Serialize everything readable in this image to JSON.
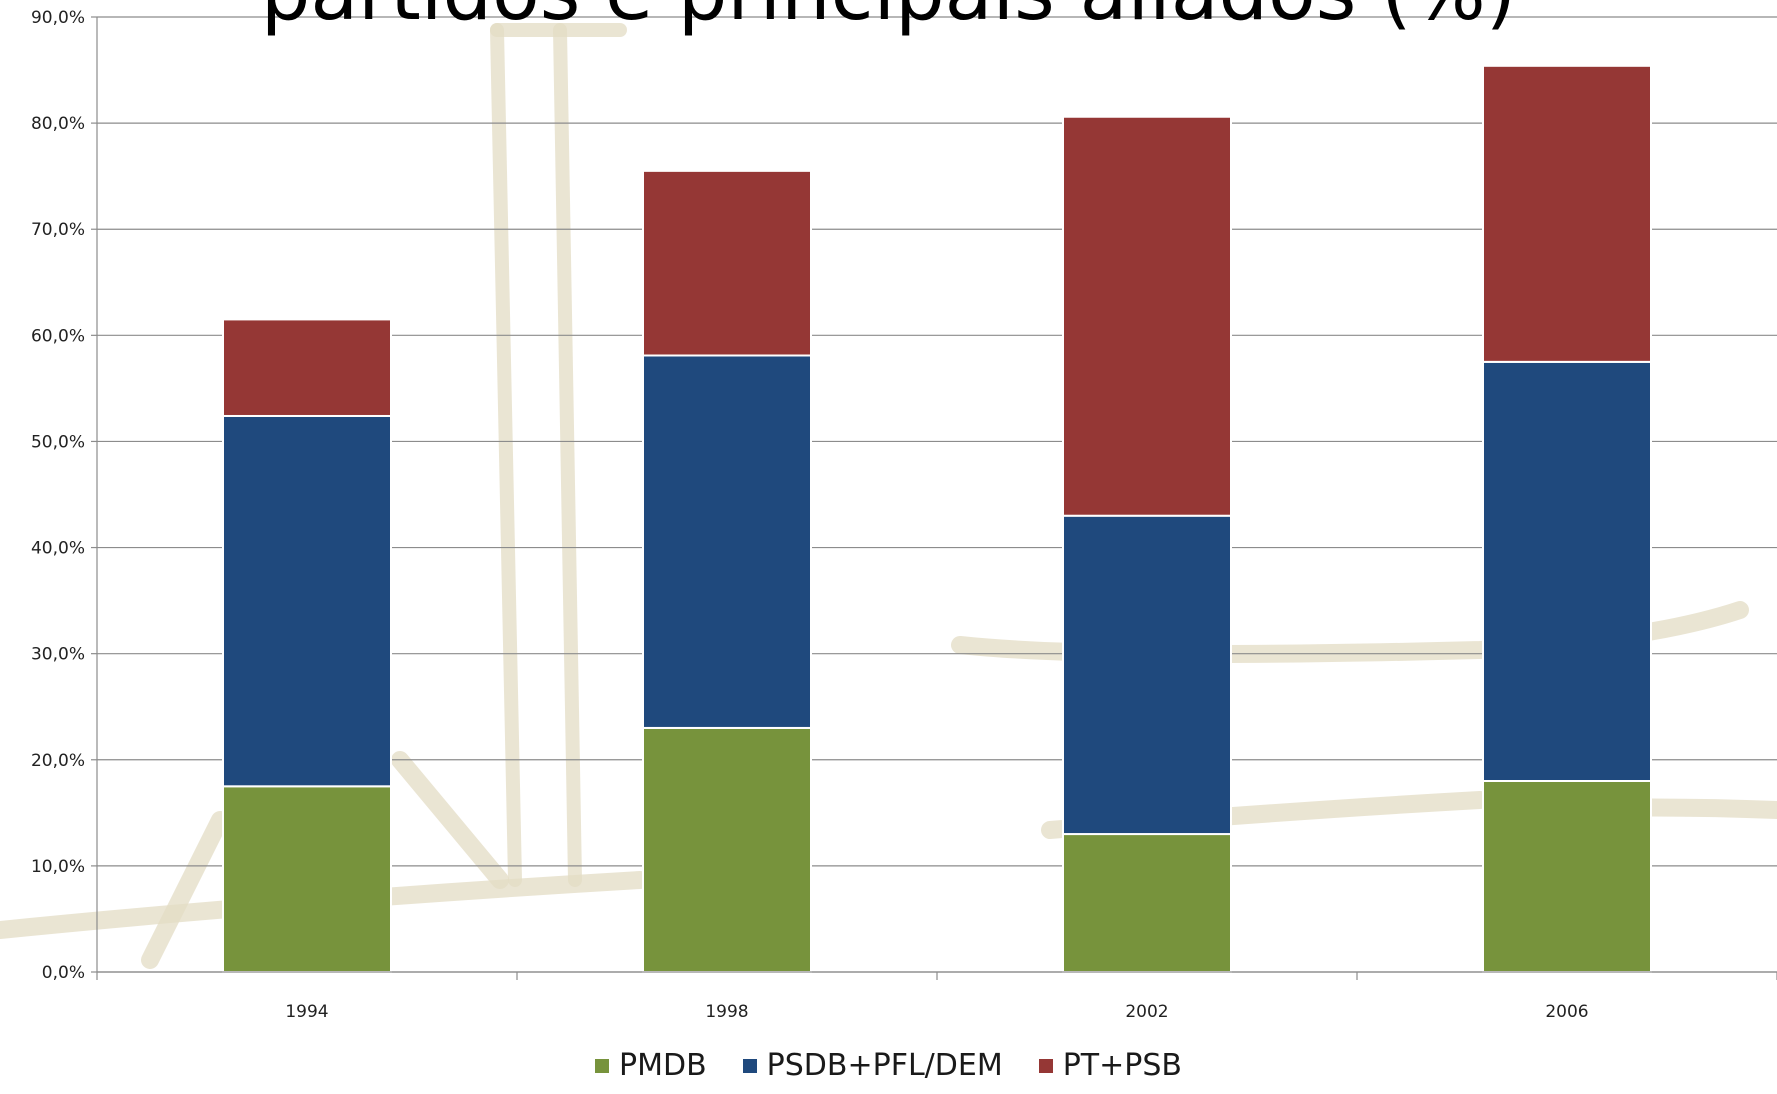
{
  "chart_data": {
    "type": "bar",
    "stacked": true,
    "title": "partidos e principais aliados (%)",
    "categories": [
      "1994",
      "1998",
      "2002",
      "2006"
    ],
    "series": [
      {
        "name": "PMDB",
        "color": "#77933c",
        "values": [
          17.5,
          23.0,
          13.0,
          18.0
        ]
      },
      {
        "name": "PSDB+PFL/DEM",
        "color": "#1f497d",
        "values": [
          34.9,
          35.1,
          30.0,
          39.5
        ]
      },
      {
        "name": "PT+PSB",
        "color": "#953735",
        "values": [
          9.1,
          17.4,
          37.6,
          27.9
        ]
      }
    ],
    "ylim": [
      0,
      90
    ],
    "y_ticks": [
      "0,0%",
      "10,0%",
      "20,0%",
      "30,0%",
      "40,0%",
      "50,0%",
      "60,0%",
      "70,0%",
      "80,0%",
      "90,0%"
    ],
    "grid": true,
    "legend_position": "bottom",
    "xlabel": "",
    "ylabel": ""
  }
}
